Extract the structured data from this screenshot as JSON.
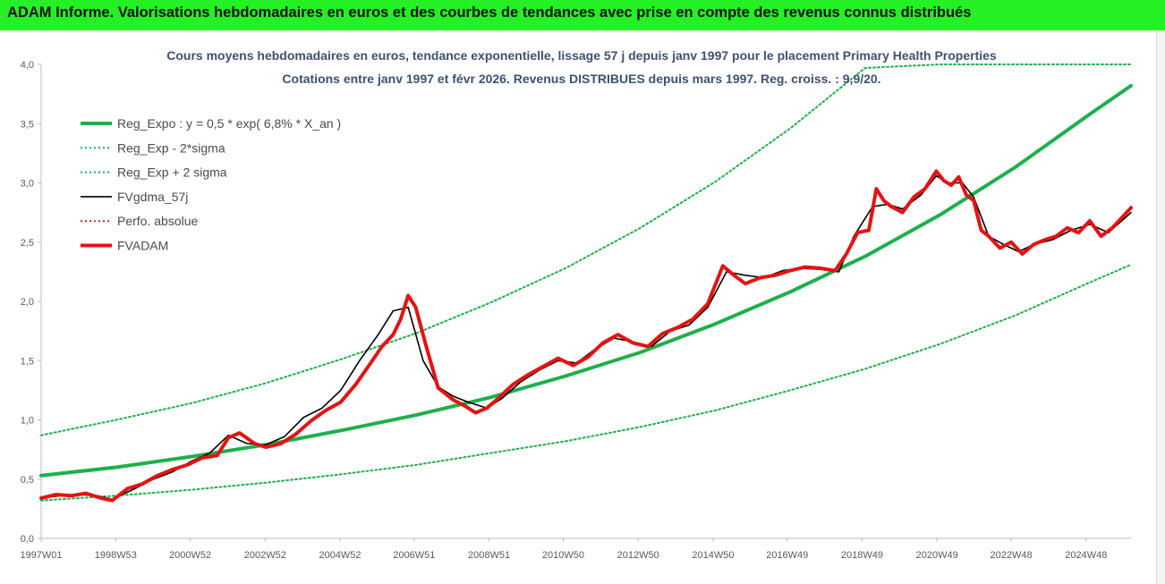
{
  "header": {
    "banner_title": "ADAM Informe. Valorisations hebdomadaires en euros et des courbes de tendances avec prise en compte des revenus connus distribués"
  },
  "chart_data": {
    "type": "line",
    "title": "Cours moyens hebdomadaires en euros, tendance exponentielle, lissage 57 j depuis janv 1997  pour le placement Primary Health Properties",
    "subtitle": "Cotations entre janv 1997 et févr 2026. Revenus DISTRIBUES  depuis mars 1997. Reg. croiss. : 9,9/20.",
    "xlabel": "",
    "ylabel": "",
    "ylim": [
      0,
      4
    ],
    "xlim": [
      1997.0,
      2026.1
    ],
    "y_ticks": [
      "0,0",
      "0,5",
      "1,0",
      "1,5",
      "2,0",
      "2,5",
      "3,0",
      "3,5",
      "4,0"
    ],
    "x_ticks": [
      {
        "label": "1997W01",
        "x": 1997.0
      },
      {
        "label": "1998W53",
        "x": 1998.99
      },
      {
        "label": "2000W52",
        "x": 2000.98
      },
      {
        "label": "2002W52",
        "x": 2002.98
      },
      {
        "label": "2004W52",
        "x": 2004.98
      },
      {
        "label": "2006W51",
        "x": 2006.96
      },
      {
        "label": "2008W51",
        "x": 2008.96
      },
      {
        "label": "2010W50",
        "x": 2010.94
      },
      {
        "label": "2012W50",
        "x": 2012.94
      },
      {
        "label": "2014W50",
        "x": 2014.94
      },
      {
        "label": "2016W49",
        "x": 2016.92
      },
      {
        "label": "2018W49",
        "x": 2018.92
      },
      {
        "label": "2020W49",
        "x": 2020.92
      },
      {
        "label": "2022W48",
        "x": 2022.9
      },
      {
        "label": "2024W48",
        "x": 2024.9
      }
    ],
    "grid": false,
    "legend_position": "top-left",
    "series": [
      {
        "name": "Reg_Expo : y = 0,5 * exp( 6,8% *  X_an )",
        "color": "#1db04b",
        "style": "solid-thick",
        "x": [
          1997.0,
          1999.0,
          2001.0,
          2003.0,
          2005.0,
          2007.0,
          2009.0,
          2011.0,
          2013.0,
          2015.0,
          2017.0,
          2019.0,
          2021.0,
          2023.0,
          2025.0,
          2026.1
        ],
        "y": [
          0.53,
          0.6,
          0.69,
          0.79,
          0.91,
          1.04,
          1.19,
          1.37,
          1.57,
          1.81,
          2.08,
          2.38,
          2.73,
          3.13,
          3.58,
          3.82
        ]
      },
      {
        "name": "Reg_Exp - 2*sigma",
        "color": "#1db04b",
        "style": "dotted",
        "x": [
          1997.0,
          1999.0,
          2001.0,
          2003.0,
          2005.0,
          2007.0,
          2009.0,
          2011.0,
          2013.0,
          2015.0,
          2017.0,
          2019.0,
          2021.0,
          2023.0,
          2025.0,
          2026.1
        ],
        "y": [
          0.32,
          0.36,
          0.41,
          0.47,
          0.54,
          0.62,
          0.72,
          0.82,
          0.94,
          1.08,
          1.25,
          1.43,
          1.64,
          1.88,
          2.16,
          2.31
        ]
      },
      {
        "name": "Reg_Exp + 2 sigma",
        "color": "#1db04b",
        "style": "dotted",
        "x": [
          1997.0,
          1999.0,
          2001.0,
          2003.0,
          2005.0,
          2007.0,
          2009.0,
          2011.0,
          2013.0,
          2015.0,
          2017.0,
          2019.0,
          2021.0,
          2023.0,
          2025.0,
          2026.1
        ],
        "y": [
          0.87,
          1.0,
          1.14,
          1.31,
          1.51,
          1.73,
          1.99,
          2.28,
          2.62,
          3.01,
          3.46,
          3.97,
          4.0,
          4.0,
          4.0,
          4.0
        ]
      },
      {
        "name": "FVgdma_57j",
        "color": "#000000",
        "style": "solid",
        "x": [
          1997.0,
          1997.5,
          1998.0,
          1998.5,
          1998.9,
          1999.5,
          2000.0,
          2000.5,
          2001.0,
          2001.5,
          2002.0,
          2002.5,
          2003.0,
          2003.5,
          2004.0,
          2004.5,
          2005.0,
          2005.5,
          2006.0,
          2006.4,
          2006.8,
          2007.2,
          2007.6,
          2008.0,
          2008.4,
          2008.9,
          2009.3,
          2009.8,
          2010.3,
          2010.8,
          2011.3,
          2011.8,
          2012.3,
          2012.8,
          2013.3,
          2013.8,
          2014.3,
          2014.8,
          2015.3,
          2015.8,
          2016.3,
          2016.8,
          2017.3,
          2017.8,
          2018.3,
          2018.7,
          2019.2,
          2019.6,
          2020.0,
          2020.5,
          2020.9,
          2021.2,
          2021.6,
          2021.9,
          2022.3,
          2022.7,
          2023.1,
          2023.5,
          2024.0,
          2024.5,
          2025.0,
          2025.5,
          2026.1
        ],
        "y": [
          0.34,
          0.36,
          0.37,
          0.36,
          0.33,
          0.42,
          0.5,
          0.56,
          0.65,
          0.72,
          0.87,
          0.8,
          0.79,
          0.86,
          1.02,
          1.1,
          1.25,
          1.5,
          1.72,
          1.92,
          1.95,
          1.5,
          1.28,
          1.2,
          1.15,
          1.1,
          1.18,
          1.32,
          1.42,
          1.5,
          1.48,
          1.6,
          1.69,
          1.66,
          1.62,
          1.75,
          1.8,
          1.95,
          2.25,
          2.22,
          2.2,
          2.26,
          2.28,
          2.27,
          2.25,
          2.55,
          2.8,
          2.82,
          2.78,
          2.9,
          3.06,
          3.0,
          3.0,
          2.88,
          2.55,
          2.48,
          2.42,
          2.48,
          2.52,
          2.6,
          2.65,
          2.58,
          2.75
        ]
      },
      {
        "name": "Perfo. absolue",
        "color": "#e02020",
        "style": "dotted",
        "x": [],
        "y": []
      },
      {
        "name": "FVADAM",
        "color": "#e41313",
        "style": "solid-thick",
        "x": [
          1997.0,
          1997.4,
          1997.8,
          1998.2,
          1998.6,
          1998.9,
          1999.3,
          1999.7,
          2000.1,
          2000.5,
          2000.9,
          2001.3,
          2001.7,
          2002.0,
          2002.3,
          2002.7,
          2003.0,
          2003.4,
          2003.8,
          2004.2,
          2004.6,
          2005.0,
          2005.4,
          2005.8,
          2006.1,
          2006.4,
          2006.6,
          2006.8,
          2007.0,
          2007.3,
          2007.6,
          2008.0,
          2008.3,
          2008.6,
          2008.9,
          2009.2,
          2009.6,
          2010.0,
          2010.4,
          2010.8,
          2011.2,
          2011.6,
          2012.0,
          2012.4,
          2012.8,
          2013.2,
          2013.6,
          2014.0,
          2014.4,
          2014.8,
          2015.2,
          2015.5,
          2015.8,
          2016.2,
          2016.6,
          2017.0,
          2017.4,
          2017.8,
          2018.2,
          2018.5,
          2018.8,
          2019.1,
          2019.3,
          2019.5,
          2019.7,
          2020.0,
          2020.3,
          2020.6,
          2020.9,
          2021.1,
          2021.3,
          2021.5,
          2021.7,
          2021.9,
          2022.1,
          2022.3,
          2022.6,
          2022.9,
          2023.2,
          2023.5,
          2023.8,
          2024.1,
          2024.4,
          2024.7,
          2025.0,
          2025.3,
          2025.6,
          2026.1
        ],
        "y": [
          0.34,
          0.37,
          0.36,
          0.38,
          0.34,
          0.32,
          0.42,
          0.46,
          0.53,
          0.58,
          0.62,
          0.68,
          0.7,
          0.85,
          0.89,
          0.8,
          0.77,
          0.8,
          0.88,
          0.99,
          1.08,
          1.15,
          1.3,
          1.48,
          1.62,
          1.72,
          1.85,
          2.05,
          1.95,
          1.6,
          1.27,
          1.17,
          1.12,
          1.06,
          1.1,
          1.18,
          1.3,
          1.38,
          1.45,
          1.52,
          1.46,
          1.53,
          1.65,
          1.72,
          1.65,
          1.62,
          1.73,
          1.78,
          1.85,
          1.98,
          2.3,
          2.22,
          2.15,
          2.2,
          2.22,
          2.26,
          2.29,
          2.28,
          2.26,
          2.4,
          2.58,
          2.6,
          2.95,
          2.85,
          2.8,
          2.75,
          2.88,
          2.95,
          3.1,
          3.02,
          2.98,
          3.05,
          2.9,
          2.85,
          2.6,
          2.55,
          2.45,
          2.5,
          2.4,
          2.48,
          2.52,
          2.55,
          2.62,
          2.58,
          2.68,
          2.55,
          2.62,
          2.79
        ]
      }
    ]
  }
}
